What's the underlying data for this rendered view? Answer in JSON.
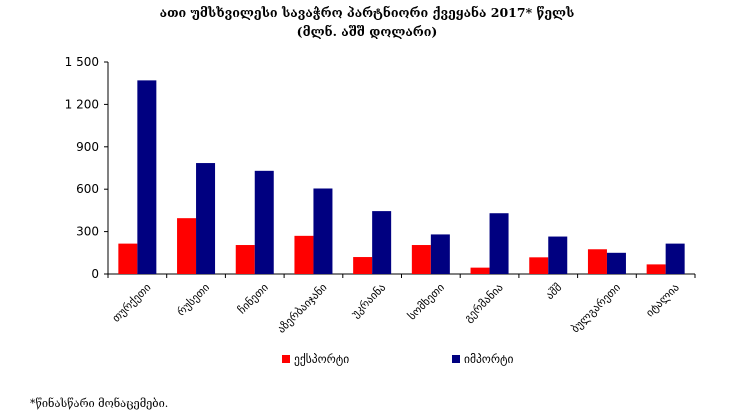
{
  "chart_data": {
    "type": "bar",
    "title": "ათი უმსხვილესი სავაჭრო პარტნიორი ქვეყანა 2017* წელს",
    "subtitle": "(მლნ. აშშ დოლარი)",
    "categories": [
      "თურქეთი",
      "რუსეთი",
      "ჩინეთი",
      "აზერბაიჯანი",
      "უკრაინა",
      "სომხეთი",
      "გერმანია",
      "აშშ",
      "ბულგარეთი",
      "იტალია"
    ],
    "series": [
      {
        "name": "ექსპორტი",
        "color": "#ff0000",
        "values": [
          215,
          395,
          205,
          270,
          120,
          205,
          45,
          118,
          175,
          68
        ]
      },
      {
        "name": "იმპორტი",
        "color": "#000080",
        "values": [
          1370,
          785,
          730,
          605,
          445,
          280,
          430,
          265,
          150,
          215
        ]
      }
    ],
    "yticks": [
      "0",
      "300",
      "600",
      "900",
      "1 200",
      "1 500"
    ],
    "ylim": [
      0,
      1500
    ],
    "grid": false,
    "legend_position": "bottom",
    "footnote": "*წინასწარი მონაცემები."
  }
}
